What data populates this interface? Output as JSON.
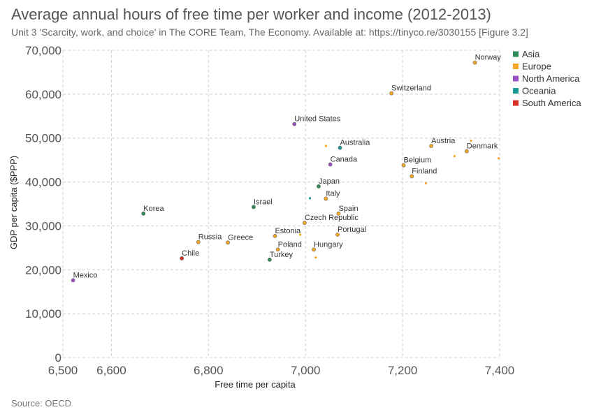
{
  "title": "Average annual hours of free time per worker and income (2012-2013)",
  "subtitle": "Unit 3 'Scarcity, work, and choice' in The CORE Team, The Economy. Available at: https://tinyco.re/3030155 [Figure 3.2]",
  "source": "Source: OECD",
  "chart_data": {
    "type": "scatter",
    "xlabel": "Free time per capita",
    "ylabel": "GDP per capita ($PPP)",
    "xlim": [
      6500,
      7400
    ],
    "ylim": [
      0,
      70000
    ],
    "x_ticks": [
      6500,
      6600,
      6800,
      7000,
      7200,
      7400
    ],
    "x_tick_labels": [
      "6,500",
      "6,600",
      "6,800",
      "7,000",
      "7,200",
      "7,400"
    ],
    "y_ticks": [
      0,
      10000,
      20000,
      30000,
      40000,
      50000,
      60000,
      70000
    ],
    "y_tick_labels": [
      "0",
      "10,000",
      "20,000",
      "30,000",
      "40,000",
      "50,000",
      "60,000",
      "70,000"
    ],
    "grid": true,
    "legend_position": "top-right",
    "groups": [
      {
        "name": "Asia",
        "color": "#2e8b57"
      },
      {
        "name": "Europe",
        "color": "#f5a623"
      },
      {
        "name": "North America",
        "color": "#9b4fc4"
      },
      {
        "name": "Oceania",
        "color": "#1b9a95"
      },
      {
        "name": "South America",
        "color": "#d9302c"
      }
    ],
    "points": [
      {
        "label": "Norway",
        "x": 7349,
        "y": 67200,
        "group": "Europe"
      },
      {
        "label": "Switzerland",
        "x": 7177,
        "y": 60200,
        "group": "Europe"
      },
      {
        "label": "United States",
        "x": 6977,
        "y": 53200,
        "group": "North America"
      },
      {
        "label": "Austria",
        "x": 7259,
        "y": 48200,
        "group": "Europe"
      },
      {
        "label": "Denmark",
        "x": 7332,
        "y": 47000,
        "group": "Europe"
      },
      {
        "label": "Australia",
        "x": 7071,
        "y": 47800,
        "group": "Oceania"
      },
      {
        "label": "Canada",
        "x": 7051,
        "y": 44000,
        "group": "North America"
      },
      {
        "label": "Belgium",
        "x": 7202,
        "y": 43800,
        "group": "Europe"
      },
      {
        "label": "Finland",
        "x": 7219,
        "y": 41300,
        "group": "Europe"
      },
      {
        "label": "Japan",
        "x": 7027,
        "y": 39000,
        "group": "Asia"
      },
      {
        "label": "Italy",
        "x": 7042,
        "y": 36200,
        "group": "Europe"
      },
      {
        "label": "Israel",
        "x": 6893,
        "y": 34300,
        "group": "Asia"
      },
      {
        "label": "Korea",
        "x": 6666,
        "y": 32800,
        "group": "Asia"
      },
      {
        "label": "Spain",
        "x": 7068,
        "y": 32800,
        "group": "Europe"
      },
      {
        "label": "Czech Republic",
        "x": 6998,
        "y": 30700,
        "group": "Europe"
      },
      {
        "label": "Portugal",
        "x": 7066,
        "y": 28000,
        "group": "Europe"
      },
      {
        "label": "Estonia",
        "x": 6937,
        "y": 27700,
        "group": "Europe"
      },
      {
        "label": "Russia",
        "x": 6779,
        "y": 26300,
        "group": "Europe"
      },
      {
        "label": "Greece",
        "x": 6840,
        "y": 26200,
        "group": "Europe"
      },
      {
        "label": "Poland",
        "x": 6943,
        "y": 24600,
        "group": "Europe"
      },
      {
        "label": "Hungary",
        "x": 7017,
        "y": 24600,
        "group": "Europe"
      },
      {
        "label": "Turkey",
        "x": 6926,
        "y": 22300,
        "group": "Asia"
      },
      {
        "label": "Chile",
        "x": 6745,
        "y": 22600,
        "group": "South America"
      },
      {
        "label": "Mexico",
        "x": 6521,
        "y": 17600,
        "group": "North America"
      },
      {
        "label": "",
        "x": 7042,
        "y": 48200,
        "group": "Europe"
      },
      {
        "label": "",
        "x": 7341,
        "y": 49400,
        "group": "Europe"
      },
      {
        "label": "",
        "x": 7307,
        "y": 45900,
        "group": "Europe"
      },
      {
        "label": "",
        "x": 7398,
        "y": 45400,
        "group": "Europe"
      },
      {
        "label": "",
        "x": 7248,
        "y": 39700,
        "group": "Europe"
      },
      {
        "label": "",
        "x": 7009,
        "y": 36300,
        "group": "Oceania"
      },
      {
        "label": "",
        "x": 6989,
        "y": 28000,
        "group": "Europe"
      },
      {
        "label": "",
        "x": 7021,
        "y": 22800,
        "group": "Europe"
      }
    ]
  }
}
